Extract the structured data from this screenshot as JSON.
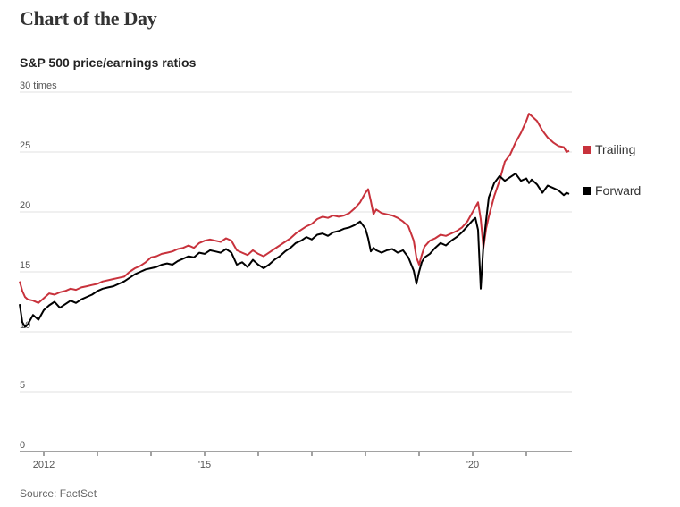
{
  "header": {
    "title": "Chart of the Day"
  },
  "source": "Source: FactSet",
  "colors": {
    "trailing": "#c8323c",
    "forward": "#000000",
    "grid": "#e2e2e2",
    "axis": "#444444"
  },
  "chart_data": {
    "type": "line",
    "title": "S&P 500 price/earnings ratios",
    "ylabel": "",
    "xlabel": "",
    "ylim": [
      0,
      30
    ],
    "xlim": [
      2011.55,
      2021.85
    ],
    "y_ticks": [
      {
        "value": 30,
        "label": "30 times"
      },
      {
        "value": 25,
        "label": "25"
      },
      {
        "value": 20,
        "label": "20"
      },
      {
        "value": 15,
        "label": "15"
      },
      {
        "value": 10,
        "label": "10"
      },
      {
        "value": 5,
        "label": "5"
      },
      {
        "value": 0,
        "label": "0"
      }
    ],
    "x_ticks": [
      {
        "value": 2012,
        "label": "2012"
      },
      {
        "value": 2013,
        "label": ""
      },
      {
        "value": 2014,
        "label": ""
      },
      {
        "value": 2015,
        "label": "'15"
      },
      {
        "value": 2016,
        "label": ""
      },
      {
        "value": 2017,
        "label": ""
      },
      {
        "value": 2018,
        "label": ""
      },
      {
        "value": 2019,
        "label": ""
      },
      {
        "value": 2020,
        "label": "'20"
      },
      {
        "value": 2021,
        "label": ""
      }
    ],
    "grid": true,
    "legend": "right",
    "series": [
      {
        "name": "Trailing",
        "x": [
          2011.55,
          2011.6,
          2011.65,
          2011.7,
          2011.8,
          2011.9,
          2012.0,
          2012.1,
          2012.2,
          2012.3,
          2012.4,
          2012.5,
          2012.6,
          2012.7,
          2012.8,
          2012.9,
          2013.0,
          2013.1,
          2013.2,
          2013.3,
          2013.4,
          2013.5,
          2013.6,
          2013.7,
          2013.8,
          2013.9,
          2014.0,
          2014.1,
          2014.2,
          2014.3,
          2014.4,
          2014.5,
          2014.6,
          2014.7,
          2014.8,
          2014.9,
          2015.0,
          2015.1,
          2015.2,
          2015.3,
          2015.4,
          2015.5,
          2015.6,
          2015.7,
          2015.8,
          2015.9,
          2016.0,
          2016.1,
          2016.2,
          2016.3,
          2016.4,
          2016.5,
          2016.6,
          2016.7,
          2016.8,
          2016.9,
          2017.0,
          2017.1,
          2017.2,
          2017.3,
          2017.4,
          2017.5,
          2017.6,
          2017.7,
          2017.8,
          2017.9,
          2018.0,
          2018.05,
          2018.1,
          2018.15,
          2018.2,
          2018.3,
          2018.4,
          2018.5,
          2018.6,
          2018.7,
          2018.8,
          2018.9,
          2018.95,
          2019.0,
          2019.05,
          2019.1,
          2019.2,
          2019.3,
          2019.4,
          2019.5,
          2019.6,
          2019.7,
          2019.8,
          2019.9,
          2020.0,
          2020.05,
          2020.1,
          2020.15,
          2020.2,
          2020.25,
          2020.3,
          2020.4,
          2020.5,
          2020.6,
          2020.7,
          2020.8,
          2020.9,
          2021.0,
          2021.05,
          2021.1,
          2021.2,
          2021.3,
          2021.4,
          2021.5,
          2021.6,
          2021.7,
          2021.75,
          2021.8
        ],
        "values": [
          14.2,
          13.4,
          12.9,
          12.7,
          12.6,
          12.4,
          12.8,
          13.2,
          13.1,
          13.3,
          13.4,
          13.6,
          13.5,
          13.7,
          13.8,
          13.9,
          14.0,
          14.2,
          14.3,
          14.4,
          14.5,
          14.6,
          15.0,
          15.3,
          15.5,
          15.8,
          16.2,
          16.3,
          16.5,
          16.6,
          16.7,
          16.9,
          17.0,
          17.2,
          17.0,
          17.4,
          17.6,
          17.7,
          17.6,
          17.5,
          17.8,
          17.6,
          16.8,
          16.6,
          16.4,
          16.8,
          16.5,
          16.3,
          16.6,
          16.9,
          17.2,
          17.5,
          17.8,
          18.2,
          18.5,
          18.8,
          19.0,
          19.4,
          19.6,
          19.5,
          19.7,
          19.6,
          19.7,
          19.9,
          20.3,
          20.8,
          21.6,
          21.9,
          20.9,
          19.8,
          20.2,
          19.9,
          19.8,
          19.7,
          19.5,
          19.2,
          18.8,
          17.6,
          16.2,
          15.6,
          16.4,
          17.1,
          17.6,
          17.8,
          18.1,
          18.0,
          18.2,
          18.4,
          18.7,
          19.2,
          20.0,
          20.4,
          20.8,
          19.4,
          17.0,
          18.6,
          19.6,
          21.3,
          22.6,
          24.2,
          24.8,
          25.8,
          26.6,
          27.6,
          28.2,
          28.0,
          27.6,
          26.8,
          26.2,
          25.8,
          25.5,
          25.4,
          25.0,
          25.1
        ]
      },
      {
        "name": "Forward",
        "x": [
          2011.55,
          2011.6,
          2011.65,
          2011.7,
          2011.8,
          2011.9,
          2012.0,
          2012.1,
          2012.2,
          2012.3,
          2012.4,
          2012.5,
          2012.6,
          2012.7,
          2012.8,
          2012.9,
          2013.0,
          2013.1,
          2013.2,
          2013.3,
          2013.4,
          2013.5,
          2013.6,
          2013.7,
          2013.8,
          2013.9,
          2014.0,
          2014.1,
          2014.2,
          2014.3,
          2014.4,
          2014.5,
          2014.6,
          2014.7,
          2014.8,
          2014.9,
          2015.0,
          2015.1,
          2015.2,
          2015.3,
          2015.4,
          2015.5,
          2015.6,
          2015.7,
          2015.8,
          2015.9,
          2016.0,
          2016.1,
          2016.2,
          2016.3,
          2016.4,
          2016.5,
          2016.6,
          2016.7,
          2016.8,
          2016.9,
          2017.0,
          2017.1,
          2017.2,
          2017.3,
          2017.4,
          2017.5,
          2017.6,
          2017.7,
          2017.8,
          2017.9,
          2018.0,
          2018.05,
          2018.1,
          2018.15,
          2018.2,
          2018.3,
          2018.4,
          2018.5,
          2018.6,
          2018.7,
          2018.8,
          2018.9,
          2018.95,
          2019.0,
          2019.05,
          2019.1,
          2019.2,
          2019.3,
          2019.4,
          2019.5,
          2019.6,
          2019.7,
          2019.8,
          2019.9,
          2020.0,
          2020.05,
          2020.1,
          2020.15,
          2020.2,
          2020.25,
          2020.3,
          2020.4,
          2020.5,
          2020.6,
          2020.7,
          2020.8,
          2020.9,
          2021.0,
          2021.05,
          2021.1,
          2021.2,
          2021.3,
          2021.4,
          2021.5,
          2021.6,
          2021.7,
          2021.75,
          2021.8
        ],
        "values": [
          12.3,
          10.8,
          10.4,
          10.6,
          11.4,
          11.0,
          11.8,
          12.2,
          12.5,
          12.0,
          12.3,
          12.6,
          12.4,
          12.7,
          12.9,
          13.1,
          13.4,
          13.6,
          13.7,
          13.8,
          14.0,
          14.2,
          14.5,
          14.8,
          15.0,
          15.2,
          15.3,
          15.4,
          15.6,
          15.7,
          15.6,
          15.9,
          16.1,
          16.3,
          16.2,
          16.6,
          16.5,
          16.8,
          16.7,
          16.6,
          16.9,
          16.6,
          15.6,
          15.8,
          15.4,
          16.0,
          15.6,
          15.3,
          15.6,
          16.0,
          16.3,
          16.7,
          17.0,
          17.4,
          17.6,
          17.9,
          17.7,
          18.1,
          18.2,
          18.0,
          18.3,
          18.4,
          18.6,
          18.7,
          18.9,
          19.2,
          18.6,
          17.8,
          16.7,
          17.0,
          16.8,
          16.6,
          16.8,
          16.9,
          16.6,
          16.8,
          16.2,
          15.1,
          14.0,
          15.0,
          15.8,
          16.2,
          16.5,
          17.0,
          17.4,
          17.2,
          17.6,
          17.9,
          18.3,
          18.8,
          19.3,
          19.5,
          18.5,
          13.6,
          17.2,
          19.3,
          21.2,
          22.4,
          23.0,
          22.6,
          22.9,
          23.2,
          22.6,
          22.8,
          22.4,
          22.7,
          22.3,
          21.6,
          22.2,
          22.0,
          21.8,
          21.4,
          21.6,
          21.5
        ]
      }
    ]
  }
}
